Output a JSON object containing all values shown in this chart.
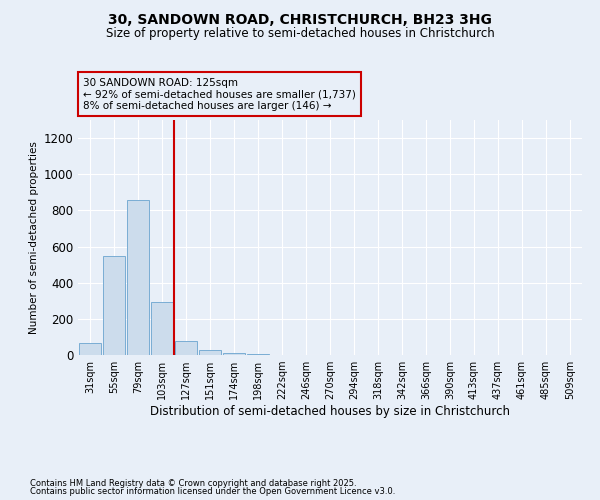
{
  "title": "30, SANDOWN ROAD, CHRISTCHURCH, BH23 3HG",
  "subtitle": "Size of property relative to semi-detached houses in Christchurch",
  "xlabel": "Distribution of semi-detached houses by size in Christchurch",
  "ylabel": "Number of semi-detached properties",
  "footnote1": "Contains HM Land Registry data © Crown copyright and database right 2025.",
  "footnote2": "Contains public sector information licensed under the Open Government Licence v3.0.",
  "annotation_title": "30 SANDOWN ROAD: 125sqm",
  "annotation_line1": "← 92% of semi-detached houses are smaller (1,737)",
  "annotation_line2": "8% of semi-detached houses are larger (146) →",
  "categories": [
    "31sqm",
    "55sqm",
    "79sqm",
    "103sqm",
    "127sqm",
    "151sqm",
    "174sqm",
    "198sqm",
    "222sqm",
    "246sqm",
    "270sqm",
    "294sqm",
    "318sqm",
    "342sqm",
    "366sqm",
    "390sqm",
    "413sqm",
    "437sqm",
    "461sqm",
    "485sqm",
    "509sqm"
  ],
  "values": [
    65,
    550,
    860,
    295,
    75,
    30,
    10,
    5,
    0,
    0,
    0,
    0,
    0,
    0,
    0,
    0,
    0,
    0,
    0,
    0,
    0
  ],
  "red_line_x": 3.5,
  "bar_color": "#ccdcec",
  "bar_edge_color": "#7aadd4",
  "red_line_color": "#cc0000",
  "background_color": "#e8eff8",
  "grid_color": "#ffffff",
  "ylim": [
    0,
    1300
  ],
  "yticks": [
    0,
    200,
    400,
    600,
    800,
    1000,
    1200
  ]
}
